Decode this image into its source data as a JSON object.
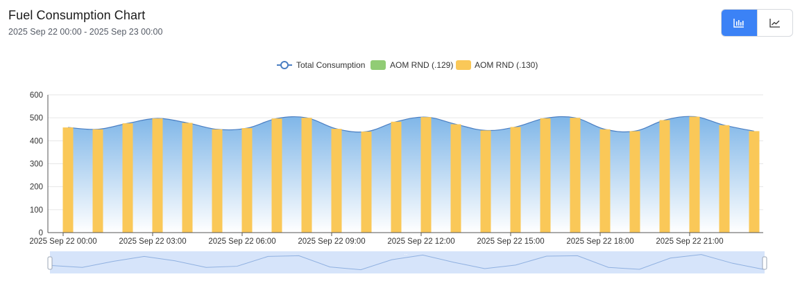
{
  "header": {
    "title": "Fuel Consumption Chart",
    "subtitle": "2025 Sep 22 00:00 - 2025 Sep 23 00:00"
  },
  "view_toggle": {
    "options": [
      {
        "icon": "bar-chart-icon",
        "active": true
      },
      {
        "icon": "line-chart-icon",
        "active": false
      }
    ],
    "active_color": "#3b82f6"
  },
  "colors": {
    "total_line": "#4a7ec2",
    "area_top": "#7fb6e8",
    "area_bottom": "#ffffff",
    "bar_129": "#91cc75",
    "bar_130": "#fac858",
    "slider_fill": "#d6e4fa"
  },
  "chart_data": {
    "type": "bar",
    "legend": [
      "Total Consumption",
      "AOM RND (.129)",
      "AOM RND (.130)"
    ],
    "ylim": [
      0,
      600
    ],
    "yticks": [
      0,
      100,
      200,
      300,
      400,
      500,
      600
    ],
    "xtick_labels": [
      "2025 Sep 22 00:00",
      "2025 Sep 22 03:00",
      "2025 Sep 22 06:00",
      "2025 Sep 22 09:00",
      "2025 Sep 22 12:00",
      "2025 Sep 22 15:00",
      "2025 Sep 22 18:00",
      "2025 Sep 22 21:00"
    ],
    "categories": [
      "2025 Sep 22 00:00",
      "2025 Sep 22 01:00",
      "2025 Sep 22 02:00",
      "2025 Sep 22 03:00",
      "2025 Sep 22 04:00",
      "2025 Sep 22 05:00",
      "2025 Sep 22 06:00",
      "2025 Sep 22 07:00",
      "2025 Sep 22 08:00",
      "2025 Sep 22 09:00",
      "2025 Sep 22 10:00",
      "2025 Sep 22 11:00",
      "2025 Sep 22 12:00",
      "2025 Sep 22 13:00",
      "2025 Sep 22 14:00",
      "2025 Sep 22 15:00",
      "2025 Sep 22 16:00",
      "2025 Sep 22 17:00",
      "2025 Sep 22 18:00",
      "2025 Sep 22 19:00",
      "2025 Sep 22 20:00",
      "2025 Sep 22 21:00",
      "2025 Sep 22 22:00",
      "2025 Sep 22 23:00"
    ],
    "series": [
      {
        "name": "Total Consumption",
        "type": "area",
        "values": [
          458,
          450,
          476,
          497,
          478,
          450,
          455,
          497,
          500,
          452,
          440,
          483,
          503,
          472,
          445,
          460,
          498,
          500,
          450,
          442,
          490,
          505,
          468,
          442
        ]
      },
      {
        "name": "AOM RND (.129)",
        "type": "bar",
        "values": [
          0,
          0,
          0,
          0,
          0,
          0,
          0,
          0,
          0,
          0,
          0,
          0,
          0,
          0,
          0,
          0,
          0,
          0,
          0,
          0,
          0,
          0,
          0,
          0
        ]
      },
      {
        "name": "AOM RND (.130)",
        "type": "bar",
        "values": [
          458,
          450,
          476,
          497,
          478,
          450,
          455,
          497,
          500,
          452,
          440,
          483,
          503,
          472,
          445,
          460,
          498,
          500,
          450,
          442,
          490,
          505,
          468,
          442
        ]
      }
    ],
    "grid": true,
    "legend_position": "top-center",
    "zoom_slider": true
  }
}
